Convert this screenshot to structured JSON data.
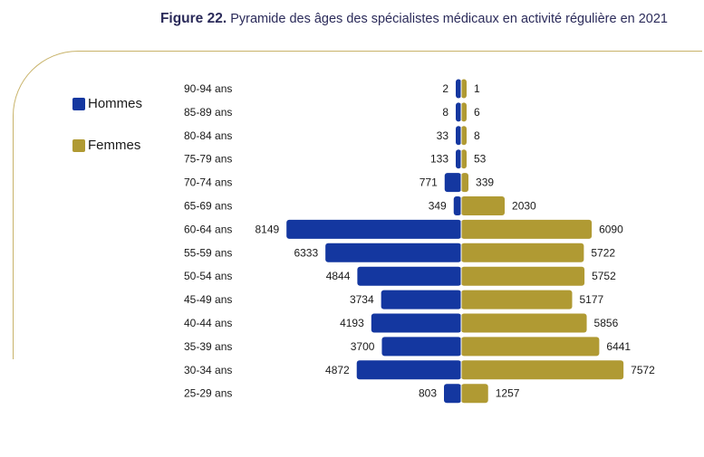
{
  "figure": {
    "label": "Figure 22.",
    "title": "Pyramide des âges des spécialistes médicaux en activité régulière en 2021"
  },
  "legend": [
    {
      "name": "Hommes",
      "color": "#1437a0"
    },
    {
      "name": "Femmes",
      "color": "#b09a33"
    }
  ],
  "chart_data": {
    "type": "bar",
    "orientation": "horizontal-pyramid",
    "title": "Pyramide des âges des spécialistes médicaux en activité régulière en 2021",
    "categories": [
      "90-94 ans",
      "85-89 ans",
      "80-84 ans",
      "75-79 ans",
      "70-74 ans",
      "65-69 ans",
      "60-64 ans",
      "55-59 ans",
      "50-54 ans",
      "45-49 ans",
      "40-44 ans",
      "35-39 ans",
      "30-34 ans",
      "25-29 ans"
    ],
    "series": [
      {
        "name": "Hommes",
        "color": "#1437a0",
        "side": "left",
        "values": [
          2,
          8,
          33,
          133,
          771,
          349,
          8149,
          6333,
          4844,
          3734,
          4193,
          3700,
          4872,
          803
        ]
      },
      {
        "name": "Femmes",
        "color": "#b09a33",
        "side": "right",
        "values": [
          1,
          6,
          8,
          53,
          339,
          2030,
          6090,
          5722,
          5752,
          5177,
          5856,
          6441,
          7572,
          1257
        ]
      }
    ],
    "legend_position": "left",
    "grid": false
  }
}
